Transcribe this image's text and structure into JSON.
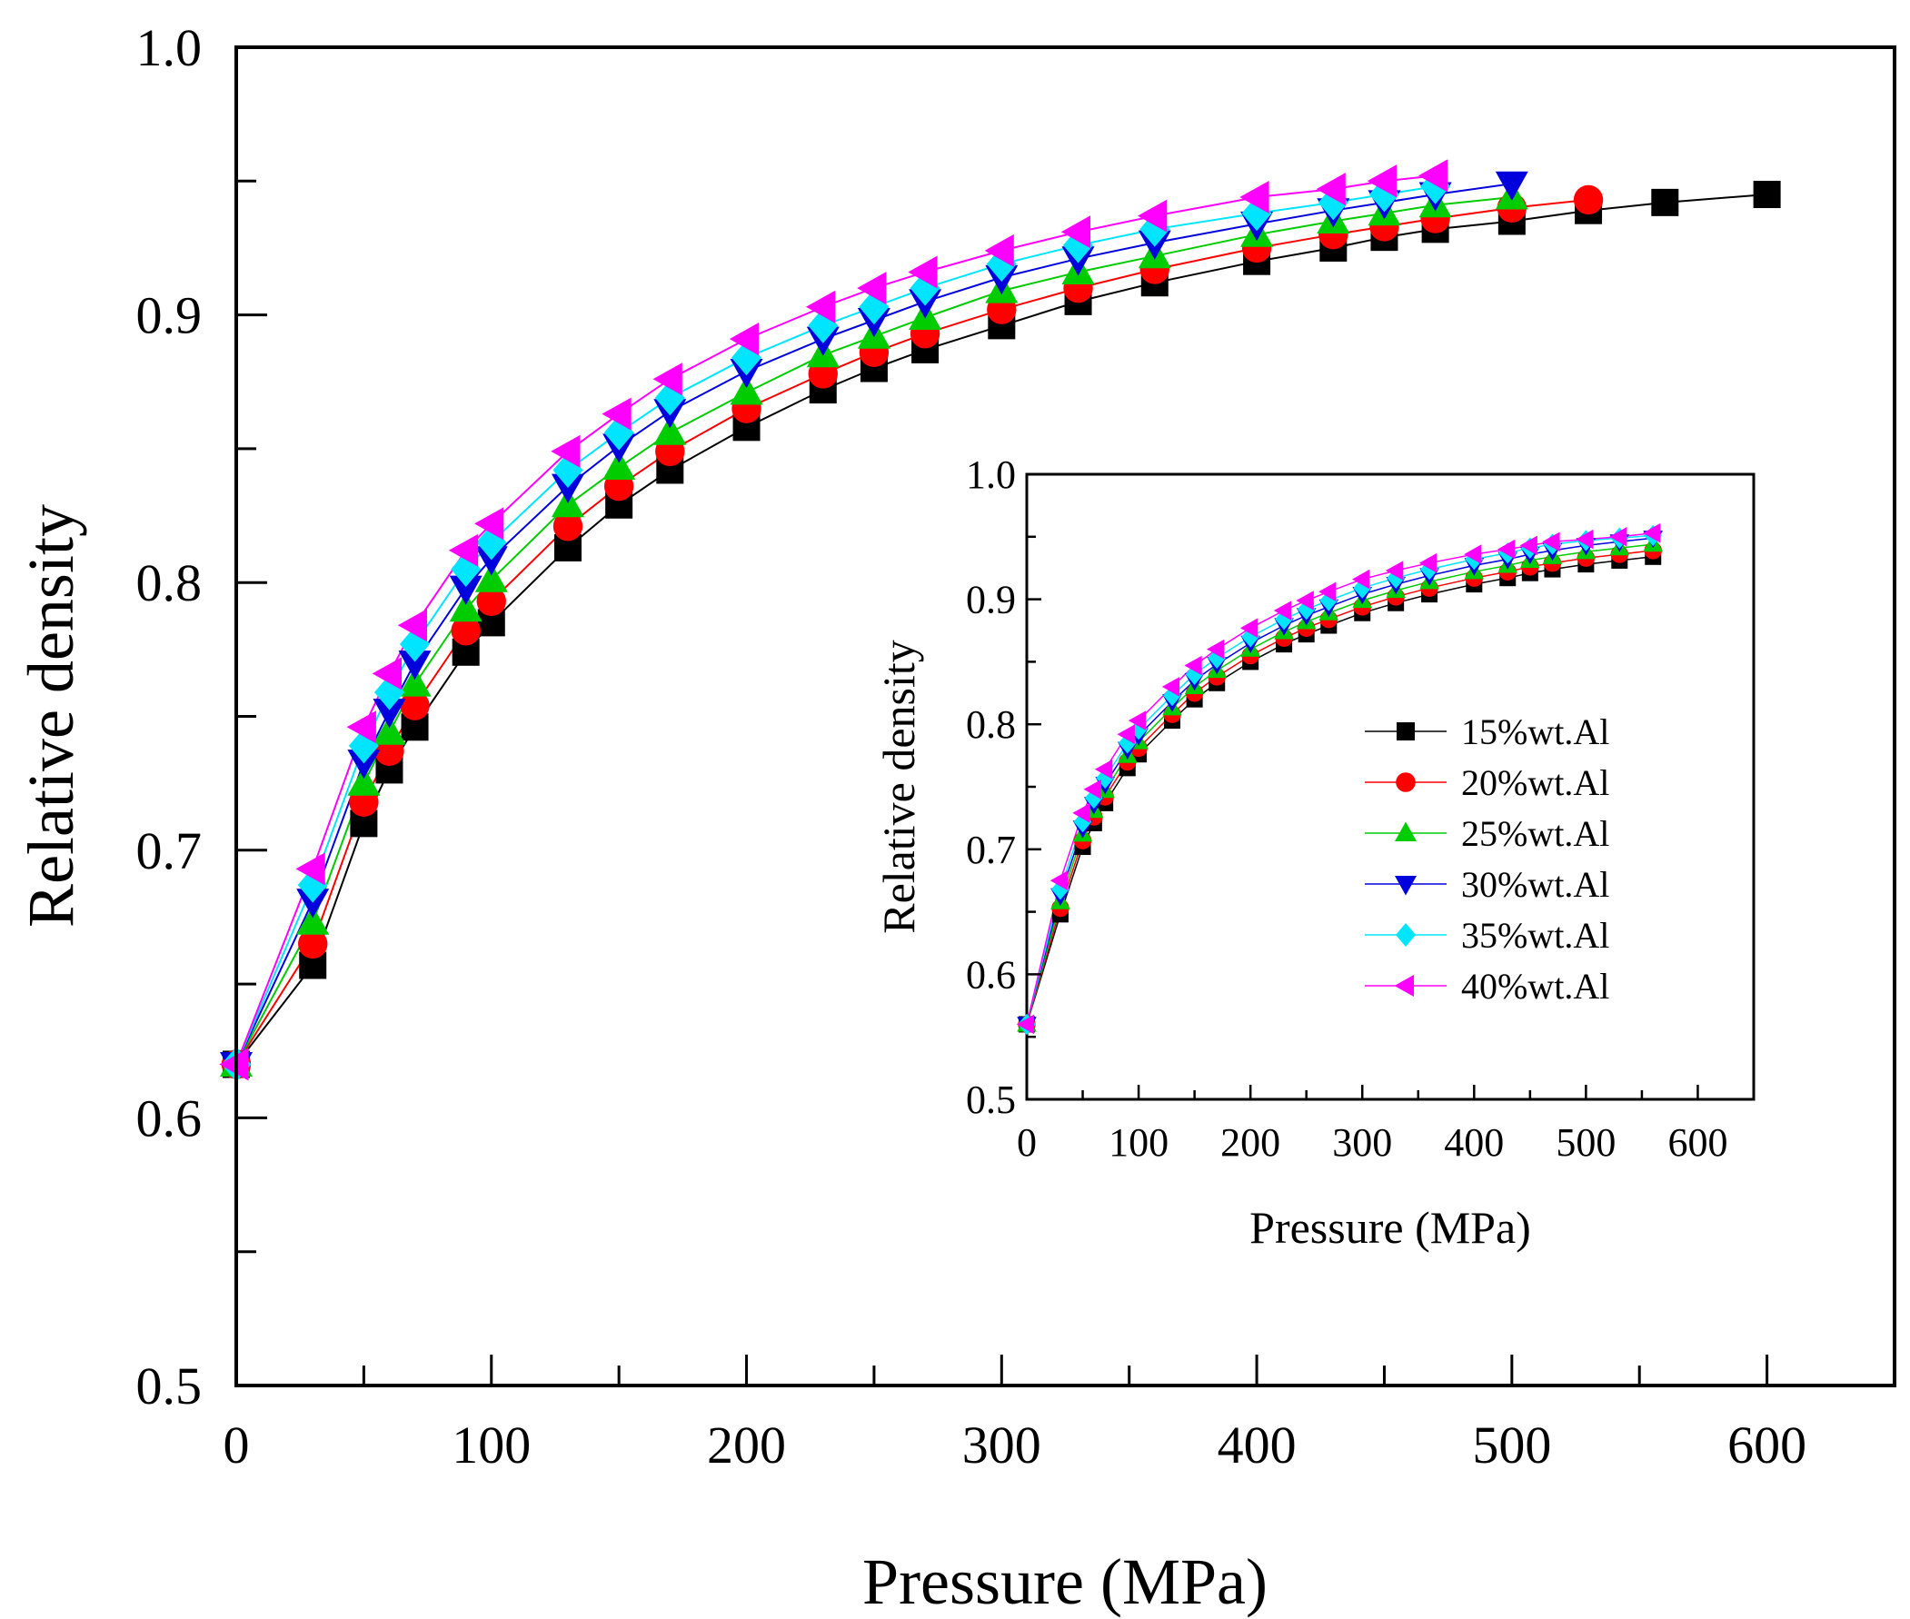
{
  "chart_data": [
    {
      "id": "main",
      "type": "line",
      "xlabel": "Pressure (MPa)",
      "ylabel": "Relative density",
      "xlim": [
        0,
        650
      ],
      "ylim": [
        0.5,
        1.0
      ],
      "xticks": [
        "0",
        "100",
        "200",
        "300",
        "400",
        "500",
        "600"
      ],
      "yticks": [
        "0.5",
        "0.6",
        "0.7",
        "0.8",
        "0.9",
        "1.0"
      ],
      "series": [
        {
          "name": "15%wt.Al",
          "color": "#000000",
          "marker": "square",
          "x": [
            0,
            30,
            50,
            60,
            70,
            90,
            100,
            130,
            150,
            170,
            200,
            230,
            250,
            270,
            300,
            330,
            360,
            400,
            430,
            450,
            470,
            500,
            530,
            560,
            600
          ],
          "y": [
            0.62,
            0.657,
            0.71,
            0.73,
            0.746,
            0.774,
            0.785,
            0.813,
            0.829,
            0.842,
            0.858,
            0.872,
            0.88,
            0.887,
            0.896,
            0.905,
            0.912,
            0.92,
            0.925,
            0.929,
            0.932,
            0.935,
            0.939,
            0.942,
            0.945
          ]
        },
        {
          "name": "20%wt.Al",
          "color": "#ff0000",
          "marker": "circle",
          "x": [
            0,
            30,
            50,
            60,
            70,
            90,
            100,
            130,
            150,
            170,
            200,
            230,
            250,
            270,
            300,
            330,
            360,
            400,
            430,
            450,
            470,
            500,
            530
          ],
          "y": [
            0.62,
            0.665,
            0.718,
            0.737,
            0.754,
            0.782,
            0.793,
            0.821,
            0.836,
            0.849,
            0.865,
            0.878,
            0.886,
            0.893,
            0.902,
            0.91,
            0.917,
            0.925,
            0.93,
            0.933,
            0.936,
            0.94,
            0.943
          ]
        },
        {
          "name": "25%wt.Al",
          "color": "#00cc00",
          "marker": "triangle-up",
          "x": [
            0,
            30,
            50,
            60,
            70,
            90,
            100,
            130,
            150,
            170,
            200,
            230,
            250,
            270,
            300,
            330,
            360,
            400,
            430,
            450,
            470,
            500
          ],
          "y": [
            0.62,
            0.673,
            0.725,
            0.744,
            0.762,
            0.79,
            0.801,
            0.829,
            0.843,
            0.856,
            0.871,
            0.885,
            0.892,
            0.899,
            0.909,
            0.916,
            0.922,
            0.93,
            0.935,
            0.938,
            0.941,
            0.944
          ]
        },
        {
          "name": "30%wt.Al",
          "color": "#0000dd",
          "marker": "triangle-down",
          "x": [
            0,
            30,
            50,
            60,
            70,
            90,
            100,
            130,
            150,
            170,
            200,
            230,
            250,
            270,
            300,
            330,
            360,
            400,
            430,
            450,
            470,
            500
          ],
          "y": [
            0.62,
            0.681,
            0.733,
            0.752,
            0.77,
            0.798,
            0.809,
            0.836,
            0.851,
            0.864,
            0.879,
            0.891,
            0.898,
            0.905,
            0.914,
            0.921,
            0.927,
            0.934,
            0.939,
            0.942,
            0.945,
            0.949
          ]
        },
        {
          "name": "35%wt.Al",
          "color": "#00e5ff",
          "marker": "diamond",
          "x": [
            0,
            30,
            50,
            60,
            70,
            90,
            100,
            130,
            150,
            170,
            200,
            230,
            250,
            270,
            300,
            330,
            360,
            400,
            430,
            450,
            470
          ],
          "y": [
            0.62,
            0.687,
            0.739,
            0.759,
            0.777,
            0.805,
            0.815,
            0.842,
            0.856,
            0.869,
            0.884,
            0.896,
            0.903,
            0.91,
            0.919,
            0.926,
            0.932,
            0.938,
            0.942,
            0.945,
            0.948
          ]
        },
        {
          "name": "40%wt.Al",
          "color": "#ff00ff",
          "marker": "triangle-left",
          "x": [
            0,
            30,
            50,
            60,
            70,
            90,
            100,
            130,
            150,
            170,
            200,
            230,
            250,
            270,
            300,
            330,
            360,
            400,
            430,
            450,
            470
          ],
          "y": [
            0.62,
            0.693,
            0.746,
            0.766,
            0.784,
            0.812,
            0.822,
            0.849,
            0.863,
            0.876,
            0.891,
            0.903,
            0.91,
            0.916,
            0.924,
            0.931,
            0.937,
            0.944,
            0.947,
            0.95,
            0.952
          ]
        }
      ]
    },
    {
      "id": "inset",
      "type": "line",
      "xlabel": "Pressure (MPa)",
      "ylabel": "Relative density",
      "xlim": [
        0,
        650
      ],
      "ylim": [
        0.5,
        1.0
      ],
      "xticks": [
        "0",
        "100",
        "200",
        "300",
        "400",
        "500",
        "600"
      ],
      "yticks": [
        "0.5",
        "0.6",
        "0.7",
        "0.8",
        "0.9",
        "1.0"
      ],
      "legend": "center-right",
      "series": [
        {
          "name": "15%wt.Al",
          "color": "#000000",
          "marker": "square",
          "x": [
            0,
            30,
            50,
            60,
            70,
            90,
            100,
            130,
            150,
            170,
            200,
            230,
            250,
            270,
            300,
            330,
            360,
            400,
            430,
            450,
            470,
            500,
            530,
            560
          ],
          "y": [
            0.56,
            0.648,
            0.702,
            0.721,
            0.737,
            0.765,
            0.776,
            0.803,
            0.82,
            0.833,
            0.85,
            0.864,
            0.872,
            0.879,
            0.889,
            0.897,
            0.904,
            0.912,
            0.917,
            0.921,
            0.924,
            0.928,
            0.931,
            0.934
          ]
        },
        {
          "name": "20%wt.Al",
          "color": "#ff0000",
          "marker": "circle",
          "x": [
            0,
            30,
            50,
            60,
            70,
            90,
            100,
            130,
            150,
            170,
            200,
            230,
            250,
            270,
            300,
            330,
            360,
            400,
            430,
            450,
            470,
            500,
            530,
            560
          ],
          "y": [
            0.56,
            0.653,
            0.707,
            0.726,
            0.742,
            0.77,
            0.781,
            0.808,
            0.825,
            0.838,
            0.855,
            0.869,
            0.877,
            0.884,
            0.894,
            0.902,
            0.909,
            0.917,
            0.922,
            0.926,
            0.929,
            0.933,
            0.936,
            0.939
          ]
        },
        {
          "name": "25%wt.Al",
          "color": "#00cc00",
          "marker": "triangle-up",
          "x": [
            0,
            30,
            50,
            60,
            70,
            90,
            100,
            130,
            150,
            170,
            200,
            230,
            250,
            270,
            300,
            330,
            360,
            400,
            430,
            450,
            470,
            500,
            530,
            560
          ],
          "y": [
            0.56,
            0.658,
            0.712,
            0.731,
            0.747,
            0.775,
            0.786,
            0.813,
            0.83,
            0.843,
            0.86,
            0.874,
            0.882,
            0.889,
            0.899,
            0.907,
            0.914,
            0.922,
            0.927,
            0.931,
            0.934,
            0.938,
            0.941,
            0.944
          ]
        },
        {
          "name": "30%wt.Al",
          "color": "#0000dd",
          "marker": "triangle-down",
          "x": [
            0,
            30,
            50,
            60,
            70,
            90,
            100,
            130,
            150,
            170,
            200,
            230,
            250,
            270,
            300,
            330,
            360,
            400,
            430,
            450,
            470,
            500,
            530,
            560
          ],
          "y": [
            0.56,
            0.663,
            0.717,
            0.736,
            0.752,
            0.78,
            0.791,
            0.818,
            0.835,
            0.848,
            0.865,
            0.879,
            0.887,
            0.894,
            0.904,
            0.912,
            0.919,
            0.927,
            0.932,
            0.936,
            0.939,
            0.943,
            0.946,
            0.949
          ]
        },
        {
          "name": "35%wt.Al",
          "color": "#00e5ff",
          "marker": "diamond",
          "x": [
            0,
            30,
            50,
            60,
            70,
            90,
            100,
            130,
            150,
            170,
            200,
            230,
            250,
            270,
            300,
            330,
            360,
            400,
            430,
            450,
            470,
            500,
            530,
            560
          ],
          "y": [
            0.56,
            0.668,
            0.722,
            0.741,
            0.757,
            0.785,
            0.796,
            0.823,
            0.84,
            0.853,
            0.87,
            0.884,
            0.892,
            0.899,
            0.909,
            0.917,
            0.924,
            0.932,
            0.937,
            0.941,
            0.944,
            0.947,
            0.949,
            0.951
          ]
        },
        {
          "name": "40%wt.Al",
          "color": "#ff00ff",
          "marker": "triangle-left",
          "x": [
            0,
            30,
            50,
            60,
            70,
            90,
            100,
            130,
            150,
            170,
            200,
            230,
            250,
            270,
            300,
            330,
            360,
            400,
            430,
            450,
            470,
            500,
            530,
            560
          ],
          "y": [
            0.56,
            0.675,
            0.729,
            0.748,
            0.764,
            0.792,
            0.803,
            0.83,
            0.847,
            0.86,
            0.877,
            0.891,
            0.899,
            0.906,
            0.916,
            0.923,
            0.929,
            0.936,
            0.94,
            0.943,
            0.946,
            0.948,
            0.95,
            0.953
          ]
        }
      ]
    }
  ]
}
